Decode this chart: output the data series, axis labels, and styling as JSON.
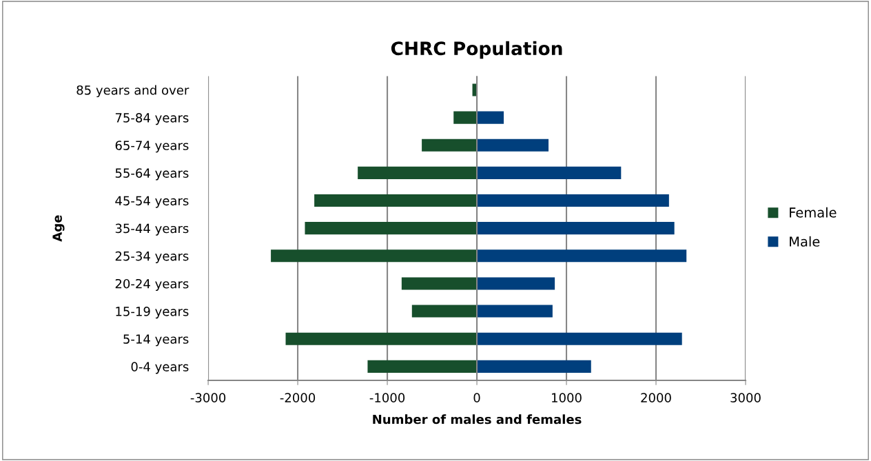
{
  "chart_data": {
    "type": "bar",
    "orientation": "horizontal",
    "title": "CHRC Population",
    "xlabel": "Number of males and females",
    "ylabel": "Age",
    "categories": [
      "85 years and over",
      "75-84 years",
      "65-74 years",
      "55-64 years",
      "45-54 years",
      "35-44 years",
      "25-34 years",
      "20-24 years",
      "15-19 years",
      "5-14 years",
      "0-4 years"
    ],
    "series": [
      {
        "name": "Female",
        "color": "#174f2c",
        "values": [
          -50,
          -260,
          -615,
          -1330,
          -1815,
          -1920,
          -2300,
          -840,
          -725,
          -2135,
          -1220
        ]
      },
      {
        "name": "Male",
        "color": "#003f7d",
        "values": [
          0,
          300,
          800,
          1610,
          2145,
          2205,
          2340,
          870,
          845,
          2290,
          1275
        ]
      }
    ],
    "stacked": true,
    "xlim": [
      -3000,
      3000
    ],
    "xticks": [
      -3000,
      -2000,
      -1000,
      0,
      1000,
      2000,
      3000
    ],
    "grid": "x",
    "legend": "right"
  }
}
